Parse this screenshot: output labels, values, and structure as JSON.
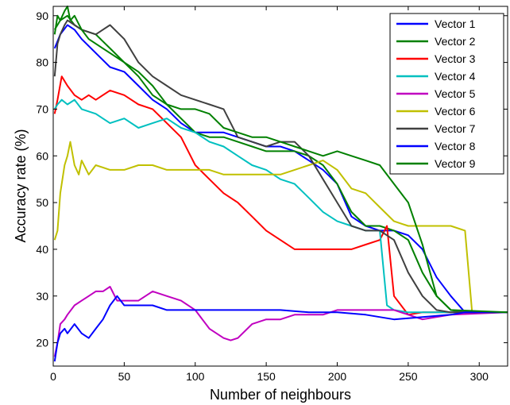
{
  "chart_data": {
    "type": "line",
    "title": "",
    "xlabel": "Number of neighbours",
    "ylabel": "Accuracy rate (%)",
    "xlim": [
      0,
      320
    ],
    "ylim": [
      15,
      92
    ],
    "xticks": [
      0,
      50,
      100,
      150,
      200,
      250,
      300
    ],
    "yticks": [
      20,
      30,
      40,
      50,
      60,
      70,
      80,
      90
    ],
    "grid": false,
    "legend_position": "top-right",
    "series": [
      {
        "name": "Vector 1",
        "color": "#0000ff",
        "x": [
          1,
          5,
          10,
          15,
          20,
          30,
          40,
          50,
          60,
          70,
          80,
          90,
          100,
          110,
          120,
          130,
          140,
          150,
          160,
          170,
          180,
          190,
          200,
          210,
          220,
          230,
          240,
          250,
          260,
          270,
          280,
          290,
          320
        ],
        "y": [
          83,
          86,
          88,
          87,
          85,
          82,
          79,
          78,
          75,
          72,
          70,
          67,
          65,
          65,
          65,
          64,
          63,
          62,
          62,
          61,
          59,
          57,
          54,
          47,
          45,
          44,
          44,
          43,
          40,
          34,
          30,
          26.5,
          26.5
        ]
      },
      {
        "name": "Vector 2",
        "color": "#008000",
        "x": [
          1,
          5,
          10,
          15,
          20,
          30,
          40,
          50,
          60,
          70,
          80,
          90,
          100,
          110,
          120,
          130,
          140,
          150,
          160,
          170,
          180,
          190,
          200,
          210,
          220,
          230,
          240,
          250,
          260,
          270,
          280,
          290,
          320
        ],
        "y": [
          87,
          89,
          90,
          88,
          87,
          86,
          83,
          80,
          78,
          75,
          71,
          68,
          65,
          64,
          64,
          63,
          62,
          61,
          61,
          61,
          60,
          58,
          54,
          48,
          45,
          45,
          44,
          42,
          35,
          30,
          27,
          26.5,
          26.5
        ]
      },
      {
        "name": "Vector 3",
        "color": "#ff0000",
        "x": [
          1,
          3,
          6,
          10,
          15,
          20,
          25,
          30,
          40,
          50,
          60,
          70,
          80,
          90,
          100,
          110,
          120,
          130,
          140,
          150,
          160,
          170,
          180,
          190,
          200,
          210,
          220,
          230,
          235,
          240,
          250,
          260,
          280,
          320
        ],
        "y": [
          69,
          72,
          77,
          75,
          73,
          72,
          73,
          72,
          74,
          73,
          71,
          70,
          67,
          64,
          58,
          55,
          52,
          50,
          47,
          44,
          42,
          40,
          40,
          40,
          40,
          40,
          41,
          42,
          45,
          30,
          26,
          26.5,
          26.5,
          26.5
        ]
      },
      {
        "name": "Vector 4",
        "color": "#00c0c0",
        "x": [
          1,
          3,
          6,
          10,
          15,
          20,
          30,
          40,
          50,
          60,
          70,
          80,
          90,
          100,
          110,
          120,
          130,
          140,
          150,
          160,
          170,
          180,
          190,
          200,
          210,
          220,
          230,
          235,
          240,
          250,
          260,
          280,
          320
        ],
        "y": [
          70,
          71,
          72,
          71,
          72,
          70,
          69,
          67,
          68,
          66,
          67,
          68,
          66,
          65,
          63,
          62,
          60,
          58,
          57,
          55,
          54,
          51,
          48,
          46,
          45,
          44,
          44,
          28,
          27,
          26.5,
          26.5,
          26.5,
          26.5
        ]
      },
      {
        "name": "Vector 5",
        "color": "#c000c0",
        "x": [
          1,
          3,
          5,
          8,
          10,
          15,
          20,
          25,
          30,
          35,
          40,
          45,
          50,
          60,
          70,
          80,
          90,
          100,
          110,
          120,
          125,
          130,
          140,
          150,
          160,
          170,
          180,
          190,
          200,
          210,
          220,
          230,
          240,
          250,
          260,
          280,
          320
        ],
        "y": [
          17,
          20,
          24,
          25,
          26,
          28,
          29,
          30,
          31,
          31,
          32,
          29,
          29,
          29,
          31,
          30,
          29,
          27,
          23,
          21,
          20.5,
          21,
          24,
          25,
          25,
          26,
          26,
          26,
          27,
          27,
          27,
          27,
          27,
          26,
          25,
          26,
          26.5
        ]
      },
      {
        "name": "Vector 6",
        "color": "#c0c000",
        "x": [
          1,
          3,
          5,
          8,
          10,
          12,
          15,
          18,
          20,
          25,
          30,
          40,
          50,
          60,
          70,
          80,
          90,
          100,
          110,
          120,
          130,
          140,
          150,
          160,
          170,
          180,
          190,
          200,
          210,
          220,
          230,
          240,
          250,
          260,
          270,
          280,
          290,
          295,
          320
        ],
        "y": [
          42,
          44,
          52,
          58,
          60,
          63,
          58,
          56,
          59,
          56,
          58,
          57,
          57,
          58,
          58,
          57,
          57,
          57,
          57,
          56,
          56,
          56,
          56,
          56,
          57,
          58,
          59,
          57,
          53,
          52,
          49,
          46,
          45,
          45,
          45,
          45,
          44,
          26.5,
          26.5
        ]
      },
      {
        "name": "Vector 7",
        "color": "#404040",
        "x": [
          1,
          3,
          5,
          8,
          10,
          15,
          20,
          30,
          40,
          50,
          60,
          70,
          80,
          90,
          100,
          110,
          120,
          130,
          140,
          150,
          160,
          170,
          180,
          190,
          200,
          210,
          220,
          230,
          240,
          250,
          260,
          270,
          280,
          320
        ],
        "y": [
          77,
          84,
          86,
          88,
          89,
          88,
          87,
          86,
          88,
          85,
          80,
          77,
          75,
          73,
          72,
          71,
          70,
          64,
          63,
          62,
          63,
          63,
          60,
          55,
          50,
          45,
          44,
          44,
          42,
          35,
          30,
          27,
          26.5,
          26.5
        ]
      },
      {
        "name": "Vector 8",
        "color": "#0000ff",
        "x": [
          1,
          3,
          5,
          8,
          10,
          15,
          20,
          25,
          30,
          35,
          40,
          45,
          50,
          60,
          70,
          80,
          90,
          100,
          120,
          140,
          160,
          180,
          200,
          220,
          240,
          260,
          280,
          290,
          320
        ],
        "y": [
          16,
          20,
          22,
          23,
          22,
          24,
          22,
          21,
          23,
          25,
          28,
          30,
          28,
          28,
          28,
          27,
          27,
          27,
          27,
          27,
          27,
          26.5,
          26.5,
          26,
          25,
          25.5,
          26,
          26.5,
          26.5
        ]
      },
      {
        "name": "Vector 9",
        "color": "#008000",
        "x": [
          1,
          3,
          5,
          8,
          10,
          12,
          15,
          20,
          25,
          30,
          40,
          50,
          60,
          70,
          80,
          90,
          100,
          110,
          120,
          130,
          140,
          150,
          160,
          170,
          180,
          190,
          200,
          210,
          220,
          230,
          240,
          250,
          260,
          270,
          280,
          320
        ],
        "y": [
          86,
          90,
          89,
          91,
          92,
          89,
          90,
          87,
          85,
          84,
          82,
          80,
          77,
          73,
          71,
          70,
          70,
          69,
          66,
          65,
          64,
          64,
          63,
          62,
          61,
          60,
          61,
          60,
          59,
          58,
          54,
          50,
          41,
          30,
          27,
          26.5
        ]
      }
    ]
  }
}
